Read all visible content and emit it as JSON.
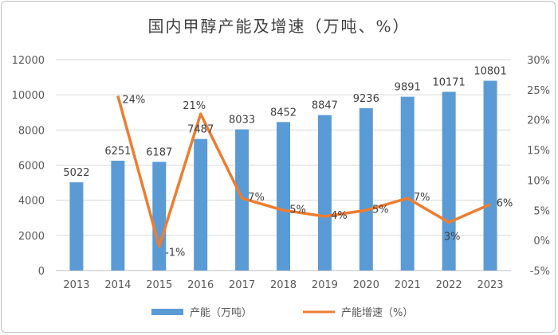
{
  "chart_data": {
    "type": "bar+line",
    "title": "国内甲醇产能及增速（万吨、%）",
    "categories": [
      "2013",
      "2014",
      "2015",
      "2016",
      "2017",
      "2018",
      "2019",
      "2020",
      "2021",
      "2022",
      "2023"
    ],
    "series": [
      {
        "name": "产能（万吨）",
        "type": "bar",
        "axis": "left",
        "color": "#5b9bd5",
        "values": [
          5022,
          6251,
          6187,
          7487,
          8033,
          8452,
          8847,
          9236,
          9891,
          10171,
          10801
        ],
        "labels": [
          "5022",
          "6251",
          "6187",
          "7487",
          "8033",
          "8452",
          "8847",
          "9236",
          "9891",
          "10171",
          "10801"
        ]
      },
      {
        "name": "产能增速（%）",
        "type": "line",
        "axis": "right",
        "color": "#ed7d31",
        "values": [
          null,
          24,
          -1,
          21,
          7,
          5,
          4,
          5,
          7,
          3,
          6
        ],
        "labels": [
          "",
          "24%",
          "-1%",
          "21%",
          "7%",
          "5%",
          "4%",
          "5%",
          "7%",
          "3%",
          "6%"
        ]
      }
    ],
    "y_left": {
      "min": 0,
      "max": 12000,
      "ticks": [
        "0",
        "2000",
        "4000",
        "6000",
        "8000",
        "10000",
        "12000"
      ]
    },
    "y_right": {
      "min": -5,
      "max": 30,
      "ticks": [
        "-5%",
        "0%",
        "5%",
        "10%",
        "15%",
        "20%",
        "25%",
        "30%"
      ]
    },
    "grid": true,
    "legend_position": "bottom"
  }
}
